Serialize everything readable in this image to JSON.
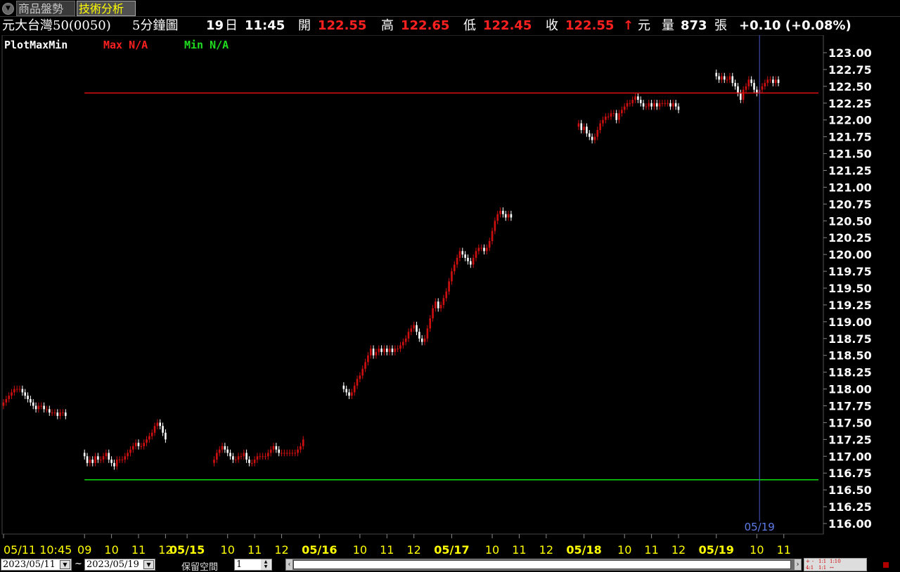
{
  "tabs": {
    "toggle_icon": "▼",
    "items": [
      "商品盤勢",
      "技術分析"
    ],
    "active_index": 1
  },
  "quote": {
    "name": "元大台灣50(0050)",
    "interval": "5分鐘圖",
    "day": "19",
    "day_unit": "日",
    "time": "11:45",
    "open_label": "開",
    "open": "122.55",
    "high_label": "高",
    "high": "122.65",
    "low_label": "低",
    "low": "122.45",
    "close_label": "收",
    "close": "122.55",
    "up_arrow_icon": "↑",
    "currency": "元",
    "volume_label": "量",
    "volume": "873",
    "volume_unit": "張",
    "change": "+0.10 (+0.08%)"
  },
  "indicator": {
    "name": "PlotMaxMin",
    "max_text": "Max N/A",
    "min_text": "Min N/A"
  },
  "colors": {
    "up": "#d01010",
    "down": "#ffffff",
    "max_line": "#e01010",
    "min_line": "#10dd10",
    "crosshair": "#4455cc",
    "axis_text": "#ffff00",
    "price_text": "#ffffff"
  },
  "chart_data": {
    "type": "candlestick",
    "ylim": [
      116.0,
      123.0
    ],
    "y_ticks": [
      "123.00",
      "122.75",
      "122.50",
      "122.25",
      "122.00",
      "121.75",
      "121.50",
      "121.25",
      "121.00",
      "120.75",
      "120.50",
      "120.25",
      "120.00",
      "119.75",
      "119.50",
      "119.25",
      "119.00",
      "118.75",
      "118.50",
      "118.25",
      "118.00",
      "117.75",
      "117.50",
      "117.25",
      "117.00",
      "116.75",
      "116.50",
      "116.25",
      "116.00"
    ],
    "x_ticks": [
      {
        "label": "05/11 10:45",
        "bold": false,
        "bar": 0
      },
      {
        "label": "09",
        "bold": false,
        "bar": 30
      },
      {
        "label": "10",
        "bold": false,
        "bar": 40
      },
      {
        "label": "11",
        "bold": false,
        "bar": 50
      },
      {
        "label": "12",
        "bold": false,
        "bar": 60
      },
      {
        "label": "05/15",
        "bold": true,
        "bar": 68
      },
      {
        "label": "10",
        "bold": false,
        "bar": 83
      },
      {
        "label": "11",
        "bold": false,
        "bar": 93
      },
      {
        "label": "12",
        "bold": false,
        "bar": 103
      },
      {
        "label": "05/16",
        "bold": true,
        "bar": 117
      },
      {
        "label": "10",
        "bold": false,
        "bar": 132
      },
      {
        "label": "11",
        "bold": false,
        "bar": 142
      },
      {
        "label": "12",
        "bold": false,
        "bar": 152
      },
      {
        "label": "05/17",
        "bold": true,
        "bar": 166
      },
      {
        "label": "10",
        "bold": false,
        "bar": 181
      },
      {
        "label": "11",
        "bold": false,
        "bar": 191
      },
      {
        "label": "12",
        "bold": false,
        "bar": 201
      },
      {
        "label": "05/18",
        "bold": true,
        "bar": 215
      },
      {
        "label": "10",
        "bold": false,
        "bar": 230
      },
      {
        "label": "11",
        "bold": false,
        "bar": 240
      },
      {
        "label": "12",
        "bold": false,
        "bar": 250
      },
      {
        "label": "05/19",
        "bold": true,
        "bar": 264
      },
      {
        "label": "10",
        "bold": false,
        "bar": 279
      },
      {
        "label": "11",
        "bold": false,
        "bar": 289
      }
    ],
    "max_level": 122.4,
    "min_level": 116.65,
    "min_line_start_bar": 30,
    "max_line_start_bar": 30,
    "crosshair_bar": 280,
    "crosshair_label": "05/19",
    "segments": [
      {
        "start": 0,
        "prices": [
          117.8,
          117.85,
          117.9,
          117.95,
          118.0,
          118.0,
          118.0,
          117.95,
          117.9,
          117.85,
          117.8,
          117.75,
          117.7,
          117.75,
          117.75,
          117.7,
          117.7,
          117.65,
          117.65,
          117.65,
          117.6,
          117.65,
          117.65,
          117.6
        ]
      },
      {
        "start": 30,
        "prices": [
          117.0,
          116.9,
          116.95,
          116.9,
          117.0,
          116.95,
          116.95,
          117.0,
          117.05,
          116.95,
          116.9,
          116.85,
          116.95,
          116.95,
          116.95,
          117.0,
          117.05,
          117.1,
          117.15,
          117.2,
          117.15,
          117.15,
          117.2,
          117.25,
          117.3,
          117.35,
          117.45,
          117.5,
          117.45,
          117.35,
          117.25
        ]
      },
      {
        "start": 78,
        "prices": [
          116.95,
          117.05,
          117.1,
          117.15,
          117.1,
          117.05,
          117.0,
          116.95,
          116.95,
          117.0,
          117.0,
          117.05,
          116.95,
          116.9,
          116.9,
          116.95,
          117.0,
          117.0,
          117.0,
          117.0,
          117.05,
          117.1,
          117.15,
          117.1,
          117.05,
          117.05,
          117.05,
          117.05,
          117.05,
          117.05,
          117.05,
          117.1,
          117.15,
          117.25
        ]
      },
      {
        "start": 126,
        "prices": [
          118.0,
          117.95,
          117.9,
          117.95,
          118.05,
          118.15,
          118.2,
          118.3,
          118.4,
          118.5,
          118.6,
          118.5,
          118.55,
          118.6,
          118.55,
          118.6,
          118.55,
          118.6,
          118.55,
          118.6,
          118.6,
          118.65,
          118.7,
          118.75,
          118.85,
          118.9,
          118.95,
          118.85,
          118.75,
          118.7,
          118.75,
          118.9,
          119.05,
          119.2,
          119.3,
          119.2,
          119.25,
          119.35,
          119.45,
          119.6,
          119.75,
          119.85,
          119.95,
          120.05,
          120.0,
          119.95,
          119.9,
          119.85,
          119.95,
          120.05,
          120.1,
          120.1,
          120.05,
          120.1,
          120.2,
          120.35,
          120.5,
          120.6,
          120.65,
          120.6,
          120.55,
          120.6,
          120.55
        ]
      },
      {
        "start": 213,
        "prices": [
          121.95,
          121.85,
          121.9,
          121.8,
          121.75,
          121.7,
          121.75,
          121.85,
          121.95,
          122.0,
          122.05,
          122.05,
          122.1,
          122.1,
          122.0,
          122.1,
          122.15,
          122.2,
          122.25,
          122.25,
          122.3,
          122.35,
          122.3,
          122.25,
          122.2,
          122.2,
          122.25,
          122.2,
          122.25,
          122.2,
          122.25,
          122.25,
          122.25,
          122.25,
          122.2,
          122.25,
          122.2,
          122.15
        ]
      },
      {
        "start": 264,
        "prices": [
          122.65,
          122.6,
          122.65,
          122.6,
          122.6,
          122.65,
          122.55,
          122.5,
          122.4,
          122.3,
          122.45,
          122.5,
          122.6,
          122.55,
          122.45,
          122.4,
          122.45,
          122.5,
          122.55,
          122.6,
          122.6,
          122.55,
          122.6,
          122.55
        ]
      }
    ]
  },
  "bottom": {
    "start_date": "2023/05/11",
    "tilde": "~",
    "end_date": "2023/05/19",
    "keep_space_label": "保留空間",
    "keep_space_value": "1",
    "scroll_left_icon": "‹",
    "scroll_right_icon": "›",
    "dropdown_icon": "▼",
    "spin_up_icon": "▲",
    "spin_down_icon": "▼",
    "zoom_controls": [
      "+",
      "-",
      "1:1",
      "1:10",
      "4:1",
      "1:1",
      "↔"
    ]
  }
}
